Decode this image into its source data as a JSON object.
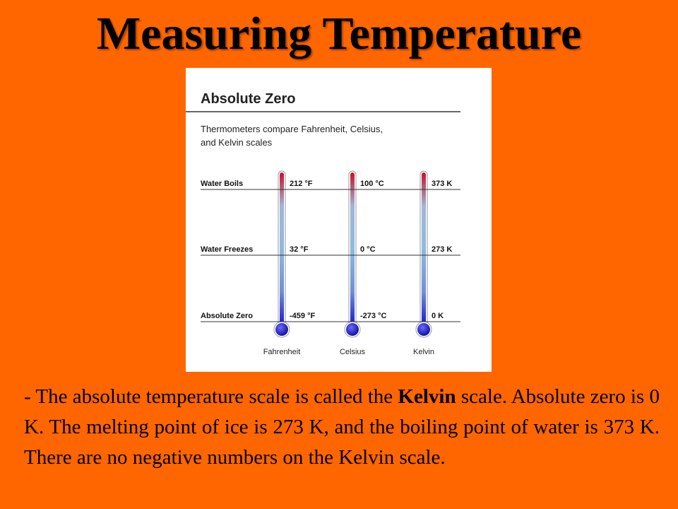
{
  "slide": {
    "title": "Measuring Temperature"
  },
  "figure": {
    "title": "Absolute Zero",
    "caption_line1": "Thermometers compare Fahrenheit, Celsius,",
    "caption_line2": "and Kelvin scales",
    "rows": [
      {
        "label": "Water Boils",
        "fahrenheit": "212 °F",
        "celsius": "100 °C",
        "kelvin": "373 K"
      },
      {
        "label": "Water Freezes",
        "fahrenheit": "32 °F",
        "celsius": "0 °C",
        "kelvin": "273 K"
      },
      {
        "label": "Absolute Zero",
        "fahrenheit": "-459 °F",
        "celsius": "-273 °C",
        "kelvin": "0 K"
      }
    ],
    "scales": [
      "Fahrenheit",
      "Celsius",
      "Kelvin"
    ]
  },
  "body": {
    "prefix": "- The absolute temperature scale is called the ",
    "bold_word": "Kelvin",
    "suffix": " scale. Absolute zero is 0 K. The melting point of ice is 273 K, and the boiling point of water is 373 K.  There are no negative numbers on the Kelvin  scale."
  },
  "colors": {
    "background": "#ff6600",
    "tube_hot": "#c8102e",
    "tube_cold": "#1a1acc",
    "tube_mid": "#8fb9e0"
  }
}
